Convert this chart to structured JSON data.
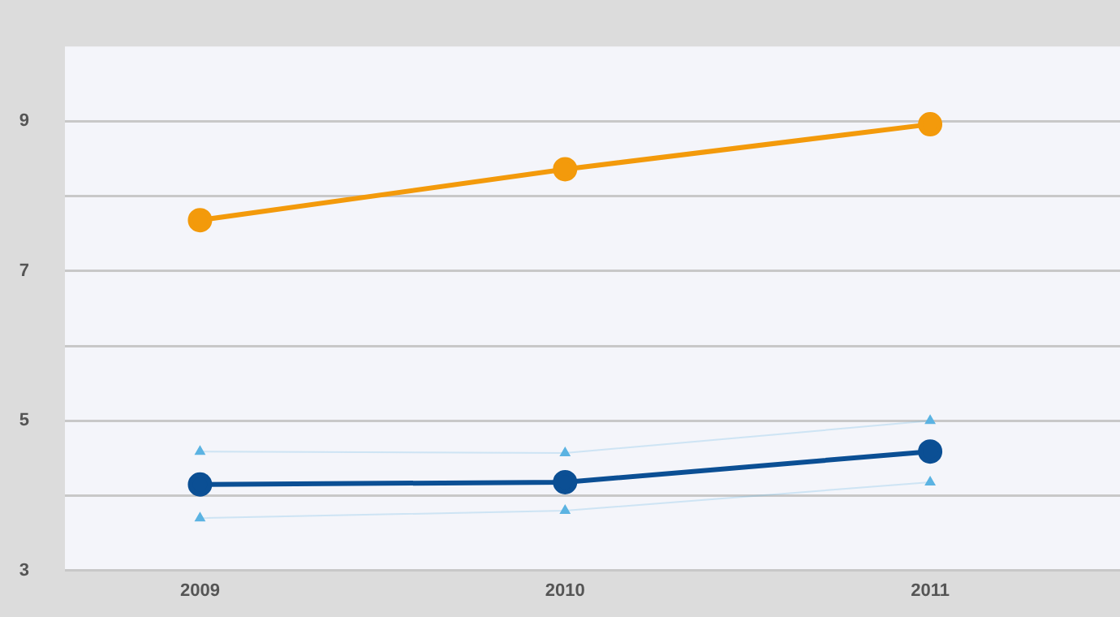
{
  "chart_data": {
    "type": "line",
    "x": [
      2009,
      2010,
      2011
    ],
    "xlim": [
      2008.63,
      2011.52
    ],
    "xticks": [
      2009,
      2010,
      2011
    ],
    "ylim": [
      3,
      10
    ],
    "yticks": [
      3,
      {
        "value": 4,
        "label": null
      },
      5,
      {
        "value": 6,
        "label": null
      },
      7,
      {
        "value": 8,
        "label": null
      },
      9
    ],
    "grid": "y",
    "legend": false,
    "series": [
      {
        "color": "#f39a0b",
        "values": [
          7.68,
          8.36,
          8.96
        ],
        "marker": "circle",
        "line_style": "solid"
      },
      {
        "color": "#0b4f94",
        "values": [
          4.15,
          4.18,
          4.59
        ],
        "marker": "circle",
        "line_style": "solid"
      },
      {
        "color": "#5bb3e2",
        "values": [
          4.59,
          4.57,
          5.0
        ],
        "marker": "triangle",
        "line_style": "solid"
      },
      {
        "color": "#5bb3e2",
        "values": [
          3.7,
          3.8,
          4.18
        ],
        "marker": "triangle",
        "line_style": "solid"
      }
    ]
  }
}
